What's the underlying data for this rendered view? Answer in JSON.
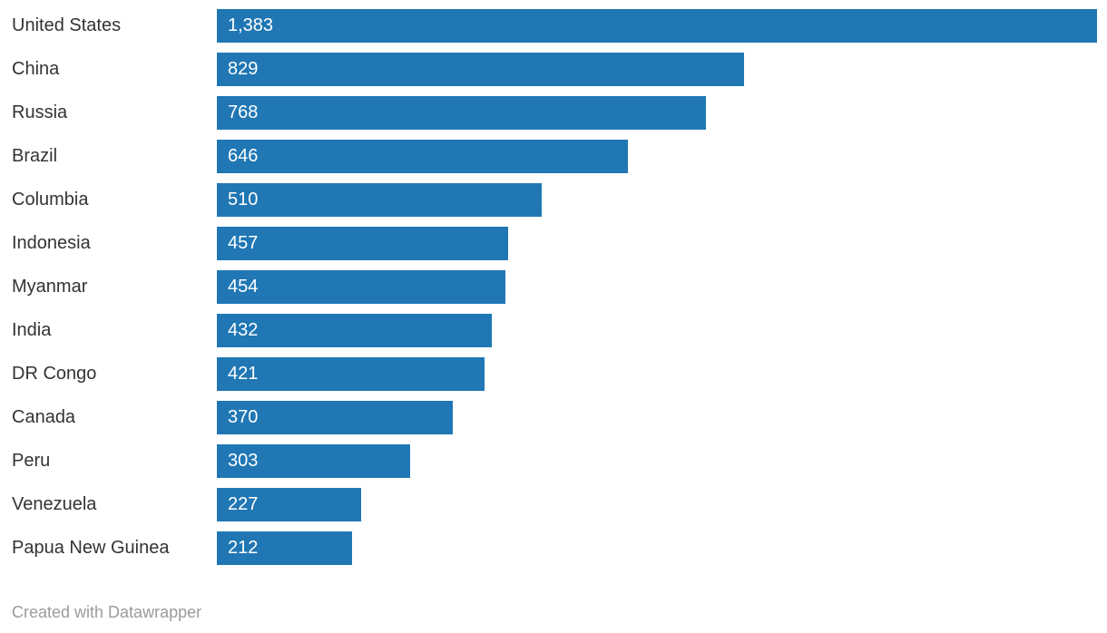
{
  "chart_data": {
    "type": "bar",
    "orientation": "horizontal",
    "title": "",
    "xlabel": "",
    "ylabel": "",
    "xlim": [
      0,
      1383
    ],
    "grid": false,
    "legend": "none",
    "categories": [
      "United States",
      "China",
      "Russia",
      "Brazil",
      "Columbia",
      "Indonesia",
      "Myanmar",
      "India",
      "DR Congo",
      "Canada",
      "Peru",
      "Venezuela",
      "Papua New Guinea"
    ],
    "values": [
      1383,
      829,
      768,
      646,
      510,
      457,
      454,
      432,
      421,
      370,
      303,
      227,
      212
    ],
    "value_labels": [
      "1,383",
      "829",
      "768",
      "646",
      "510",
      "457",
      "454",
      "432",
      "421",
      "370",
      "303",
      "227",
      "212"
    ],
    "bar_color": "#2077b4",
    "category_label_color": "#333333",
    "value_label_color": "#ffffff"
  },
  "footer": {
    "credit": "Created with Datawrapper",
    "color": "#9b9b9b"
  }
}
